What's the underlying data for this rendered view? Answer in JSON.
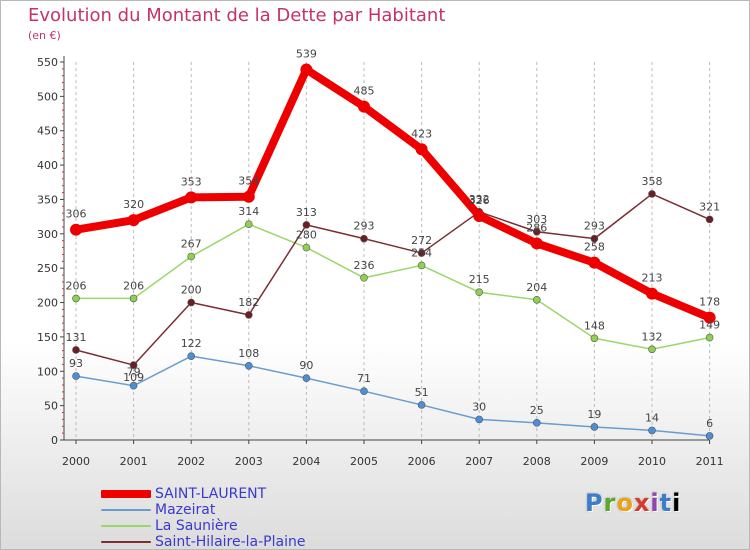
{
  "header": {
    "title": "Evolution du Montant de la Dette par Habitant",
    "unit": "(en €)"
  },
  "brand": "Proxiti",
  "colors": {
    "title": "#c4336b",
    "legend_text": "#3a3acc",
    "axis": "#444444",
    "grid": "#bbbbbb"
  },
  "chart_data": {
    "type": "line",
    "title": "Evolution du Montant de la Dette par Habitant",
    "ylabel": "(en €)",
    "xlabel": "",
    "categories": [
      "2000",
      "2001",
      "2002",
      "2003",
      "2004",
      "2005",
      "2006",
      "2007",
      "2008",
      "2009",
      "2010",
      "2011"
    ],
    "ylim": [
      0,
      550
    ],
    "yticks": [
      0,
      50,
      100,
      150,
      200,
      250,
      300,
      350,
      400,
      450,
      500,
      550
    ],
    "grid": "vertical dashed",
    "legend_position": "bottom-left",
    "series": [
      {
        "name": "SAINT-LAURENT",
        "values": [
          306,
          320,
          353,
          354,
          539,
          485,
          423,
          326,
          286,
          258,
          213,
          178
        ],
        "color": "#ee0000",
        "marker": "#ee0000",
        "emphasis": true
      },
      {
        "name": "Mazeirat",
        "values": [
          93,
          79,
          122,
          108,
          90,
          71,
          51,
          30,
          25,
          19,
          14,
          6
        ],
        "color": "#6b9ccc",
        "marker": "#4a90d9",
        "emphasis": false
      },
      {
        "name": "La Saunière",
        "values": [
          206,
          206,
          267,
          314,
          280,
          236,
          254,
          215,
          204,
          148,
          132,
          149
        ],
        "color": "#9ad66a",
        "marker": "#8ed150",
        "emphasis": false
      },
      {
        "name": "Saint-Hilaire-la-Plaine",
        "values": [
          131,
          109,
          200,
          182,
          313,
          293,
          272,
          332,
          303,
          293,
          358,
          321
        ],
        "color": "#7a2e33",
        "marker": "#6b1e24",
        "emphasis": false
      }
    ]
  }
}
